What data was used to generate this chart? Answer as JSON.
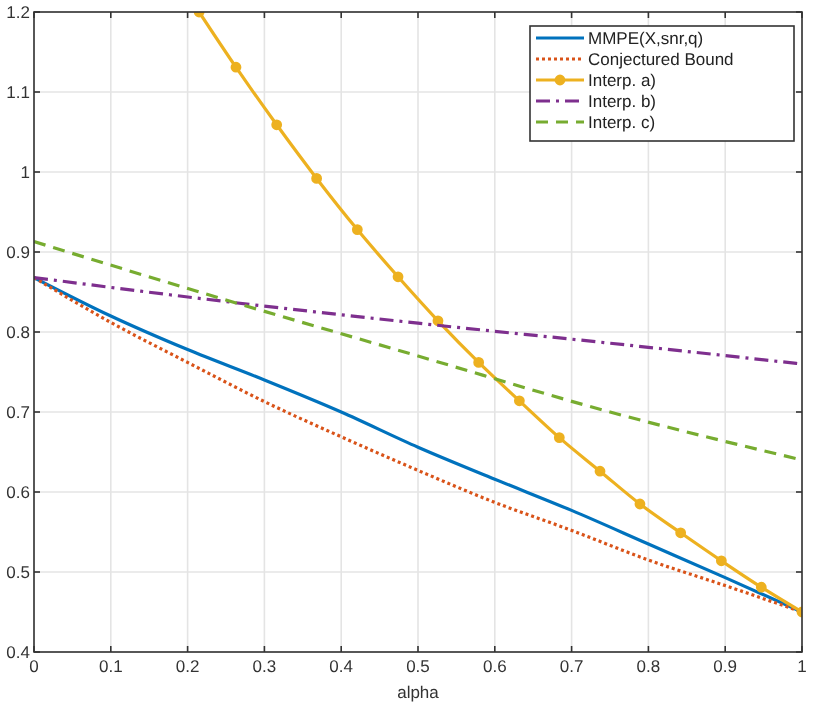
{
  "chart_data": {
    "type": "line",
    "xlabel": "alpha",
    "xlim": [
      0,
      1
    ],
    "xticks": [
      0,
      0.1,
      0.2,
      0.3,
      0.4,
      0.5,
      0.6,
      0.7,
      0.8,
      0.9,
      1
    ],
    "ylim": [
      0.4,
      1.2
    ],
    "yticks": [
      0.4,
      0.5,
      0.6,
      0.7,
      0.8,
      0.9,
      1,
      1.1,
      1.2
    ],
    "grid": true,
    "legend": "top right",
    "series": [
      {
        "name": "MMPE(X,snr,q)",
        "color": "#0072bd",
        "line_style": "solid",
        "marker": "none",
        "x": [
          0,
          0.1,
          0.2,
          0.3,
          0.4,
          0.5,
          0.6,
          0.7,
          0.8,
          0.9,
          1
        ],
        "values": [
          0.868,
          0.82,
          0.778,
          0.74,
          0.7,
          0.656,
          0.616,
          0.577,
          0.535,
          0.493,
          0.45
        ]
      },
      {
        "name": "Conjectured Bound",
        "color": "#d95319",
        "line_style": "dotted",
        "marker": "none",
        "x": [
          0,
          0.1,
          0.2,
          0.3,
          0.4,
          0.5,
          0.6,
          0.7,
          0.8,
          0.9,
          1
        ],
        "values": [
          0.868,
          0.812,
          0.762,
          0.713,
          0.669,
          0.627,
          0.587,
          0.552,
          0.515,
          0.483,
          0.45
        ]
      },
      {
        "name": "Interp. a)",
        "color": "#edb120",
        "line_style": "solid",
        "marker": "circle",
        "x": [
          0.215,
          0.263,
          0.316,
          0.368,
          0.421,
          0.474,
          0.526,
          0.579,
          0.632,
          0.684,
          0.737,
          0.789,
          0.842,
          0.895,
          0.947,
          1
        ],
        "values": [
          1.2,
          1.131,
          1.059,
          0.992,
          0.928,
          0.869,
          0.814,
          0.762,
          0.714,
          0.668,
          0.626,
          0.585,
          0.549,
          0.514,
          0.481,
          0.45
        ]
      },
      {
        "name": "Interp. b)",
        "color": "#7e2f8e",
        "line_style": "dashdot",
        "marker": "none",
        "x": [
          0,
          0.25,
          0.5,
          0.75,
          1
        ],
        "values": [
          0.868,
          0.838,
          0.811,
          0.786,
          0.76
        ]
      },
      {
        "name": "Interp. c)",
        "color": "#77ac30",
        "line_style": "dashed",
        "marker": "none",
        "x": [
          0,
          0.25,
          0.5,
          0.75,
          1
        ],
        "values": [
          0.913,
          0.84,
          0.77,
          0.7,
          0.64
        ]
      }
    ]
  }
}
